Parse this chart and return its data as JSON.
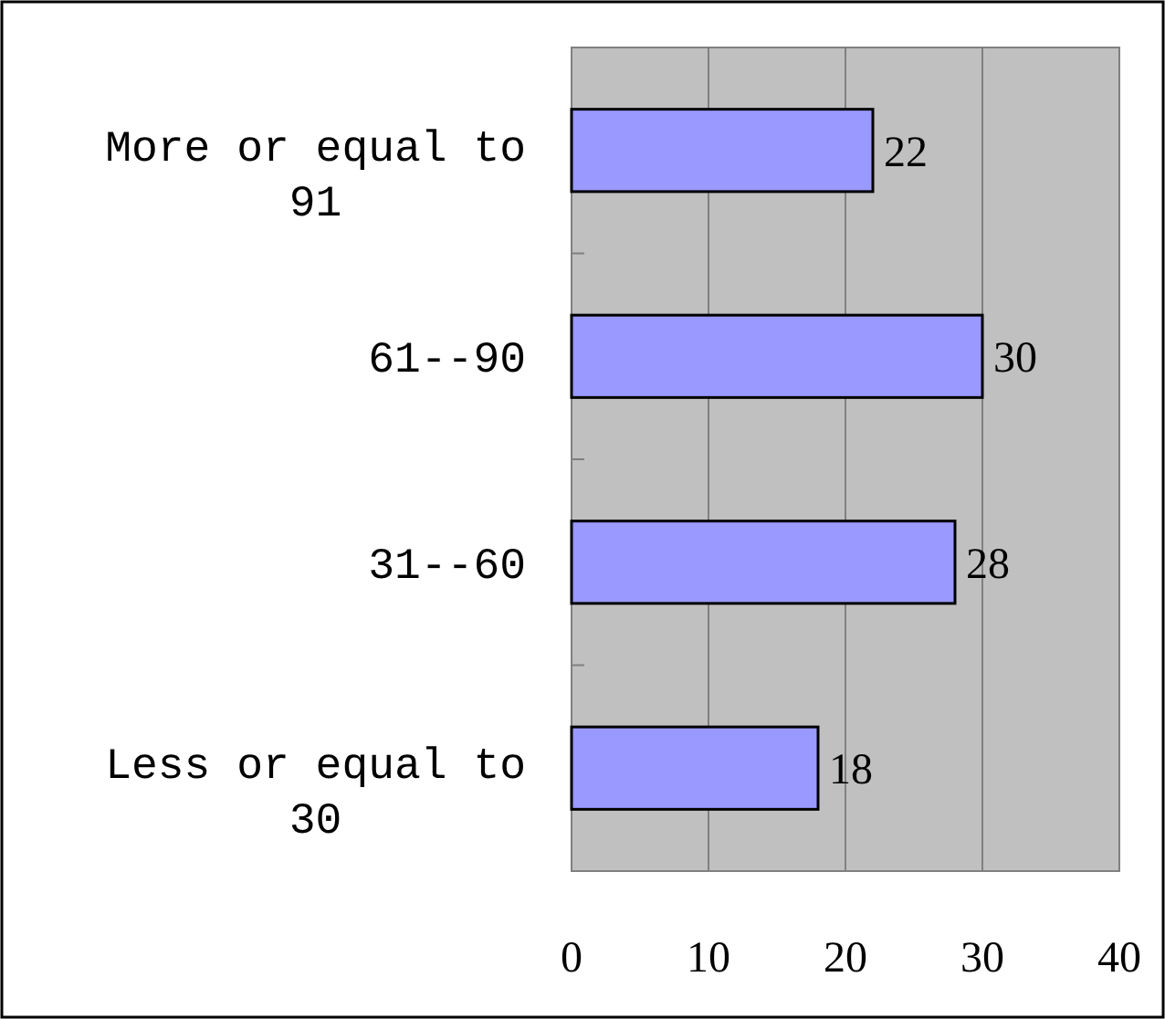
{
  "chart_data": {
    "type": "bar",
    "orientation": "horizontal",
    "categories": [
      "More or equal to 91",
      "61--90",
      "31--60",
      "Less or equal to 30"
    ],
    "values": [
      22,
      30,
      28,
      18
    ],
    "color": "#9999ff",
    "xlim": [
      0,
      40
    ],
    "xticks": [
      0,
      10,
      20,
      30,
      40
    ],
    "grid": "x",
    "data_labels": true
  }
}
